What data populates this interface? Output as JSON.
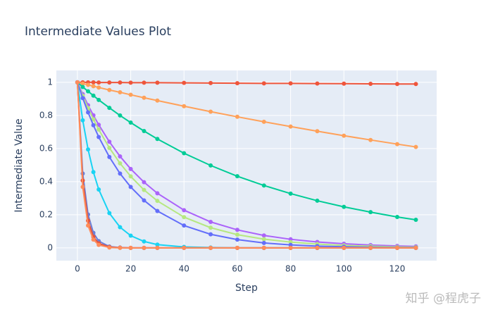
{
  "chart_data": {
    "type": "line",
    "title": "Intermediate Values Plot",
    "x_label": "Step",
    "y_label": "Intermediate Value",
    "x": [
      0,
      2,
      4,
      6,
      8,
      12,
      16,
      20,
      25,
      30,
      40,
      50,
      60,
      70,
      80,
      90,
      100,
      110,
      120,
      127
    ],
    "xlim": [
      -7.9,
      134.8
    ],
    "xticks": [
      0,
      20,
      40,
      60,
      80,
      100,
      120
    ],
    "ylim": [
      -0.077,
      1.072
    ],
    "yticks": [
      0,
      0.2,
      0.4,
      0.6,
      0.8,
      1
    ],
    "grid": true,
    "series": [
      {
        "color": "#ef553b",
        "values": [
          1,
          1,
          1,
          1,
          0.999,
          0.999,
          0.999,
          0.998,
          0.998,
          0.998,
          0.997,
          0.996,
          0.995,
          0.994,
          0.994,
          0.993,
          0.992,
          0.991,
          0.99,
          0.99
        ]
      },
      {
        "color": "#ffa15a",
        "values": [
          1,
          0.992,
          0.985,
          0.977,
          0.969,
          0.954,
          0.94,
          0.925,
          0.907,
          0.89,
          0.856,
          0.823,
          0.792,
          0.762,
          0.733,
          0.705,
          0.678,
          0.652,
          0.627,
          0.61
        ]
      },
      {
        "color": "#00cc96",
        "values": [
          1,
          0.972,
          0.946,
          0.92,
          0.894,
          0.846,
          0.8,
          0.757,
          0.706,
          0.658,
          0.572,
          0.498,
          0.433,
          0.377,
          0.328,
          0.285,
          0.248,
          0.216,
          0.187,
          0.17
        ]
      },
      {
        "color": "#ab63fa",
        "values": [
          1,
          0.929,
          0.862,
          0.801,
          0.744,
          0.641,
          0.553,
          0.477,
          0.397,
          0.33,
          0.228,
          0.157,
          0.109,
          0.075,
          0.052,
          0.036,
          0.025,
          0.017,
          0.012,
          0.009
        ]
      },
      {
        "color": "#b6e880",
        "values": [
          1,
          0.919,
          0.845,
          0.777,
          0.715,
          0.604,
          0.511,
          0.432,
          0.35,
          0.284,
          0.186,
          0.122,
          0.08,
          0.053,
          0.035,
          0.023,
          0.015,
          0.01,
          0.006,
          0.005
        ]
      },
      {
        "color": "#636efa",
        "values": [
          1,
          0.905,
          0.819,
          0.741,
          0.67,
          0.549,
          0.449,
          0.368,
          0.287,
          0.223,
          0.135,
          0.082,
          0.05,
          0.03,
          0.018,
          0.011,
          0.007,
          0.004,
          0.002,
          0.002
        ]
      },
      {
        "color": "#19d3f3",
        "values": [
          1,
          0.771,
          0.595,
          0.458,
          0.353,
          0.21,
          0.125,
          0.074,
          0.039,
          0.02,
          0.006,
          0.002,
          0,
          0,
          0,
          0,
          0,
          0,
          0,
          0
        ]
      },
      {
        "color": "#6b7fd6",
        "values": [
          1,
          0.449,
          0.202,
          0.091,
          0.041,
          0.008,
          0.002,
          0,
          0,
          0,
          0,
          0,
          0,
          0,
          0,
          0,
          0,
          0,
          0,
          0
        ]
      },
      {
        "color": "#e5533d",
        "values": [
          1,
          0.407,
          0.165,
          0.067,
          0.027,
          0.005,
          0.001,
          0,
          0,
          0,
          0,
          0,
          0,
          0,
          0,
          0,
          0,
          0,
          0,
          0
        ]
      },
      {
        "color": "#ff8c5a",
        "values": [
          1,
          0.368,
          0.135,
          0.05,
          0.018,
          0.002,
          0,
          0,
          0,
          0,
          0,
          0,
          0,
          0,
          0,
          0,
          0,
          0,
          0,
          0
        ]
      }
    ]
  },
  "watermark": "知乎 @程虎子"
}
